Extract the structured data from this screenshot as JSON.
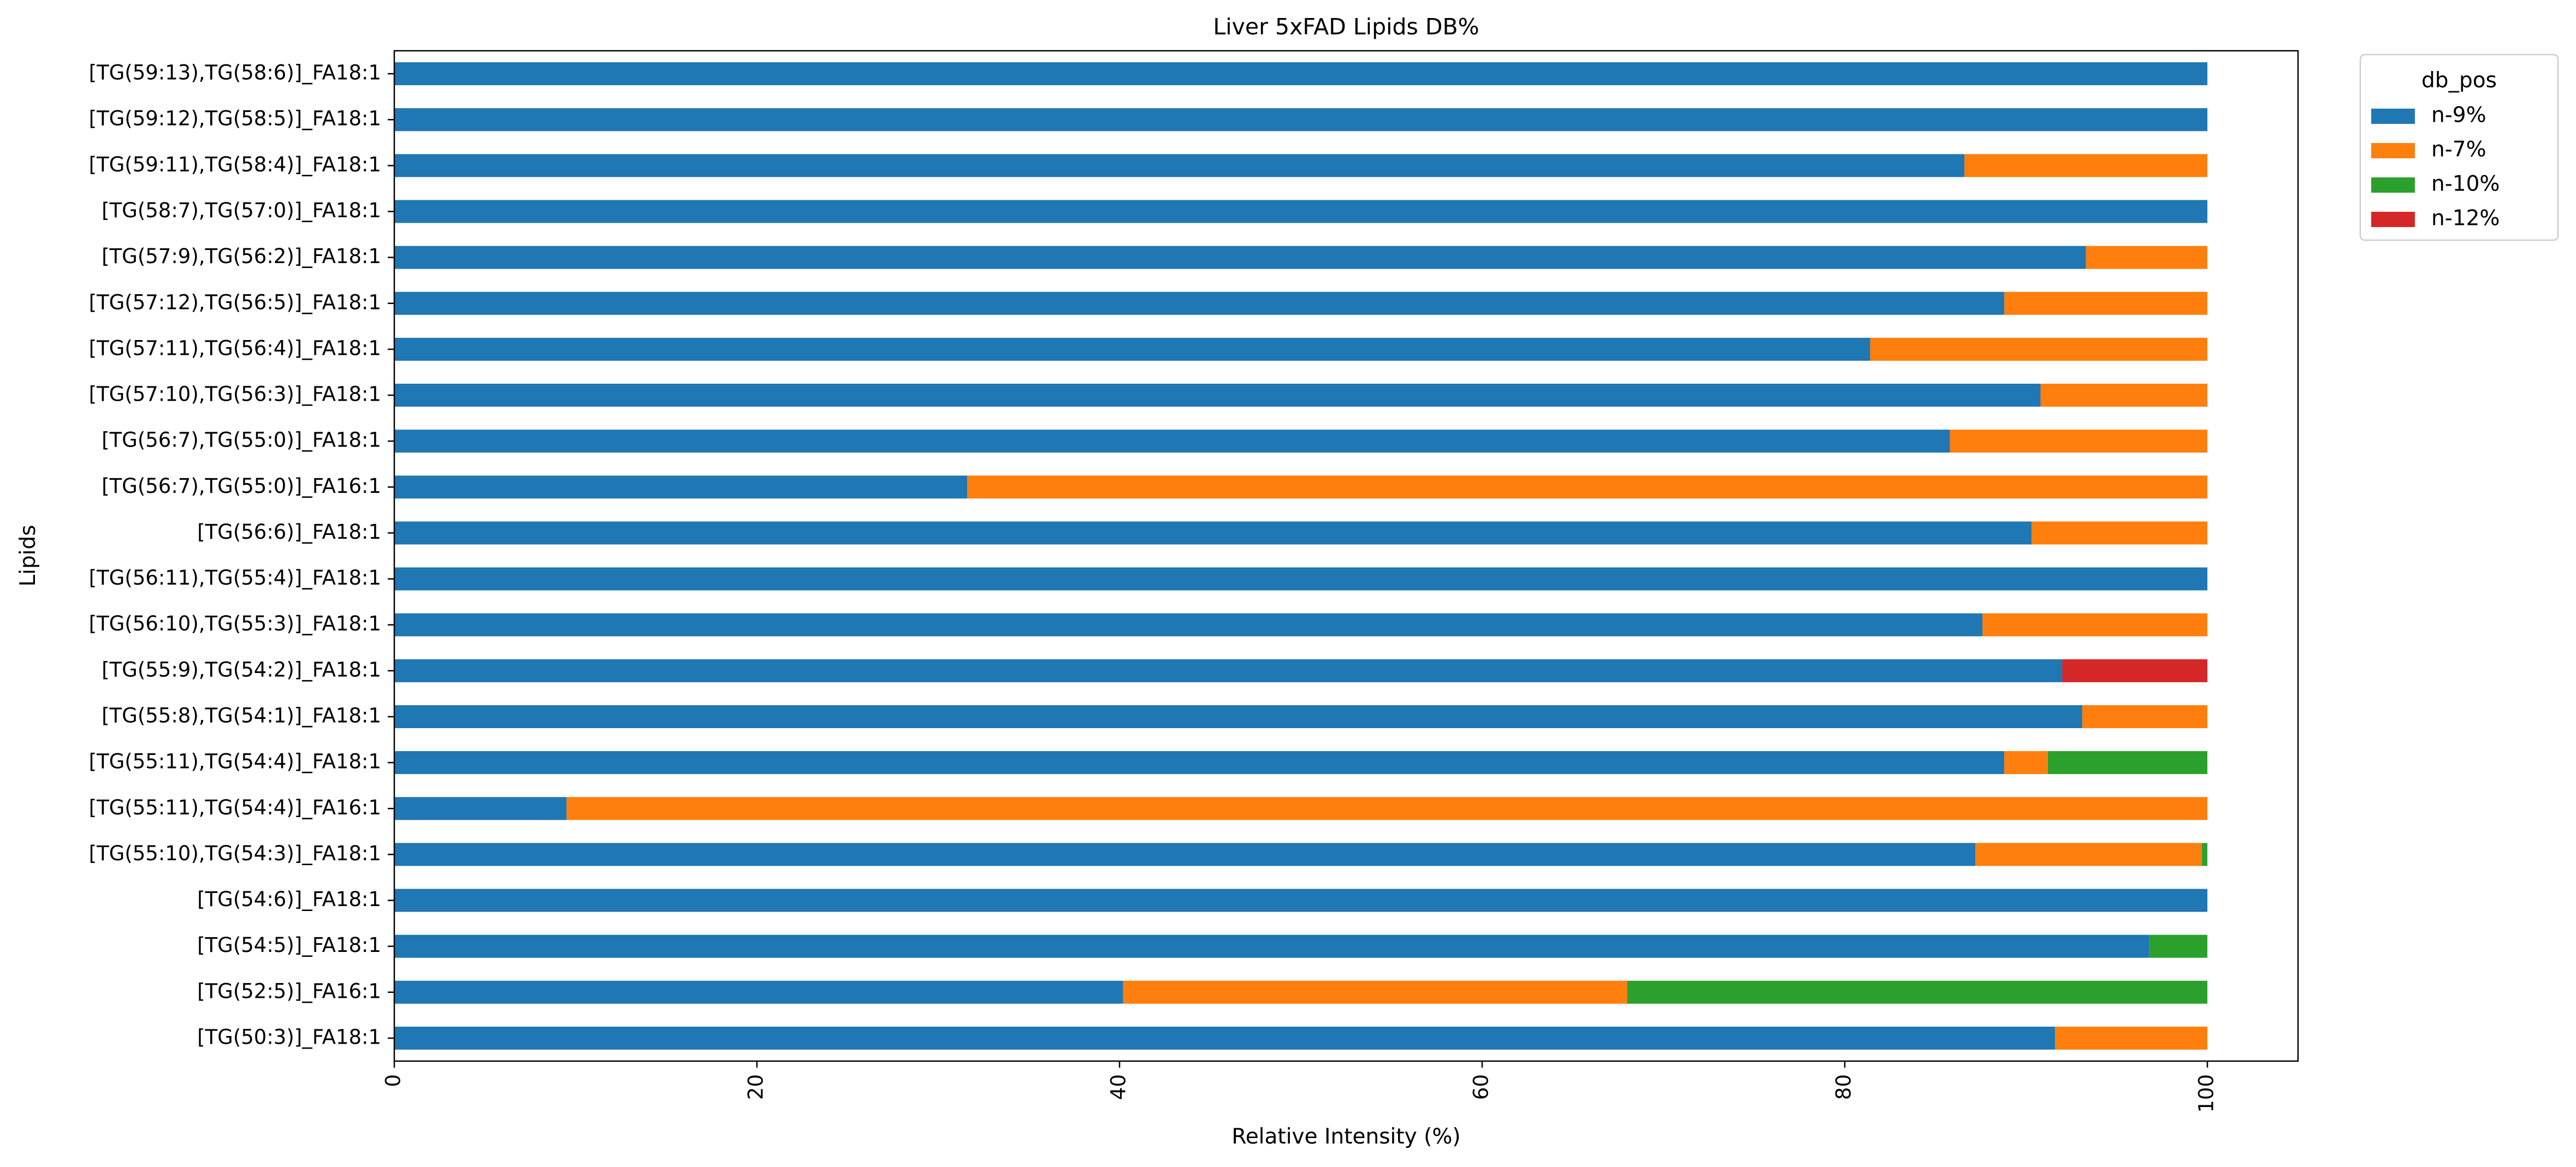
{
  "chart_data": {
    "type": "bar",
    "orientation": "horizontal",
    "stacked": true,
    "title": "Liver 5xFAD Lipids DB%",
    "xlabel": "Relative Intensity (%)",
    "ylabel": "Lipids",
    "xlim": [
      0,
      105
    ],
    "xticks": [
      0,
      20,
      40,
      60,
      80,
      100
    ],
    "grid": false,
    "legend": {
      "title": "db_pos",
      "placement": "outside-top-right"
    },
    "categories": [
      "[TG(59:13),TG(58:6)]_FA18:1",
      "[TG(59:12),TG(58:5)]_FA18:1",
      "[TG(59:11),TG(58:4)]_FA18:1",
      "[TG(58:7),TG(57:0)]_FA18:1",
      "[TG(57:9),TG(56:2)]_FA18:1",
      "[TG(57:12),TG(56:5)]_FA18:1",
      "[TG(57:11),TG(56:4)]_FA18:1",
      "[TG(57:10),TG(56:3)]_FA18:1",
      "[TG(56:7),TG(55:0)]_FA18:1",
      "[TG(56:7),TG(55:0)]_FA16:1",
      "[TG(56:6)]_FA18:1",
      "[TG(56:11),TG(55:4)]_FA18:1",
      "[TG(56:10),TG(55:3)]_FA18:1",
      "[TG(55:9),TG(54:2)]_FA18:1",
      "[TG(55:8),TG(54:1)]_FA18:1",
      "[TG(55:11),TG(54:4)]_FA18:1",
      "[TG(55:11),TG(54:4)]_FA16:1",
      "[TG(55:10),TG(54:3)]_FA18:1",
      "[TG(54:6)]_FA18:1",
      "[TG(54:5)]_FA18:1",
      "[TG(52:5)]_FA16:1",
      "[TG(50:3)]_FA18:1"
    ],
    "series": [
      {
        "name": "n-9%",
        "color": "#1f77b4",
        "values": [
          100,
          100,
          86.6,
          100,
          93.3,
          88.8,
          81.4,
          90.8,
          85.8,
          31.6,
          90.3,
          100,
          87.6,
          92.0,
          93.1,
          88.8,
          9.5,
          87.2,
          100,
          96.8,
          40.2,
          91.6
        ]
      },
      {
        "name": "n-7%",
        "color": "#ff7f0e",
        "values": [
          0,
          0,
          13.4,
          0,
          6.7,
          11.2,
          18.6,
          9.2,
          14.2,
          68.4,
          9.7,
          0,
          12.4,
          0,
          6.9,
          2.4,
          90.5,
          12.5,
          0,
          0,
          27.8,
          8.4
        ]
      },
      {
        "name": "n-10%",
        "color": "#2ca02c",
        "values": [
          0,
          0,
          0,
          0,
          0,
          0,
          0,
          0,
          0,
          0,
          0,
          0,
          0,
          0,
          0,
          8.8,
          0,
          0.3,
          0,
          3.2,
          32.0,
          0
        ]
      },
      {
        "name": "n-12%",
        "color": "#d62728",
        "values": [
          0,
          0,
          0,
          0,
          0,
          0,
          0,
          0,
          0,
          0,
          0,
          0,
          0,
          8.0,
          0,
          0,
          0,
          0,
          0,
          0,
          0,
          0
        ]
      }
    ]
  }
}
